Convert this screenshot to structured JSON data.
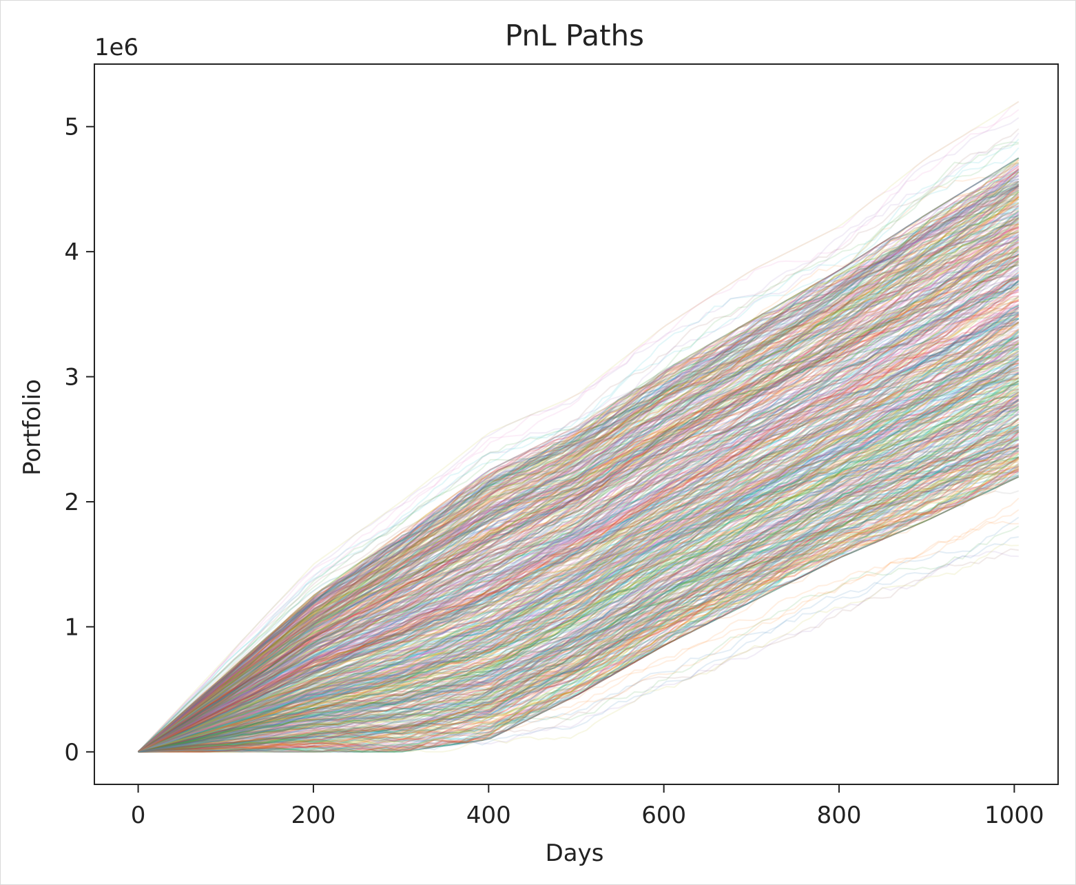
{
  "chart_data": {
    "type": "line",
    "title": "PnL Paths",
    "xlabel": "Days",
    "ylabel": "Portfolio",
    "y_offset_label": "1e6",
    "xlim": [
      -50,
      1050
    ],
    "ylim": [
      -0.26,
      5.5
    ],
    "x_ticks": [
      0,
      200,
      400,
      600,
      800,
      1000
    ],
    "x_tick_labels": [
      "0",
      "200",
      "400",
      "600",
      "800",
      "1000"
    ],
    "y_ticks": [
      0,
      1,
      2,
      3,
      4,
      5
    ],
    "y_tick_labels": [
      "0",
      "1",
      "2",
      "3",
      "4",
      "5"
    ],
    "grid": false,
    "legend": "none",
    "band": {
      "description_of_values": "Envelope of the simulated paths in units of 1e6",
      "x": [
        0,
        100,
        200,
        300,
        400,
        500,
        600,
        700,
        800,
        900,
        1005
      ],
      "upper": [
        0,
        0.75,
        1.5,
        2.0,
        2.55,
        2.85,
        3.4,
        3.85,
        4.2,
        4.75,
        5.2
      ],
      "lower": [
        0,
        0,
        0,
        0,
        0,
        0.1,
        0.4,
        0.75,
        1.05,
        1.3,
        1.55
      ],
      "typical_upper": [
        0,
        0.62,
        1.25,
        1.75,
        2.25,
        2.6,
        3.05,
        3.45,
        3.85,
        4.3,
        4.75
      ],
      "typical_lower": [
        0,
        0,
        0,
        0,
        0.1,
        0.45,
        0.85,
        1.2,
        1.55,
        1.85,
        2.2
      ]
    },
    "n_paths": 600,
    "series_colors": [
      "#1f77b4",
      "#ff7f0e",
      "#2ca02c",
      "#d62728",
      "#9467bd",
      "#8c564b",
      "#e377c2",
      "#7f7f7f",
      "#bcbd22",
      "#17becf"
    ]
  }
}
